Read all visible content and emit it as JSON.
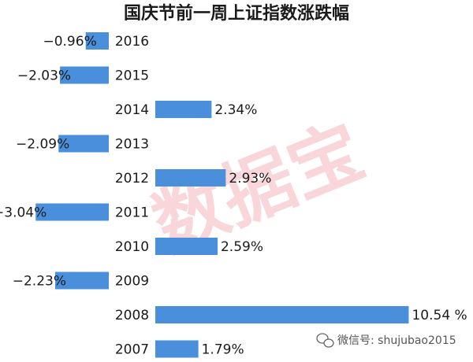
{
  "chart_data": {
    "type": "bar",
    "orientation": "horizontal",
    "title": "国庆节前一周上证指数涨跌幅",
    "categories": [
      "2016",
      "2015",
      "2014",
      "2013",
      "2012",
      "2011",
      "2010",
      "2009",
      "2008",
      "2007"
    ],
    "values": [
      -0.96,
      -2.03,
      2.34,
      -2.09,
      2.93,
      -3.04,
      2.59,
      -2.23,
      10.54,
      1.79
    ],
    "value_labels": [
      "−0.96%",
      "−2.03%",
      "2.34%",
      "−2.09%",
      "2.93%",
      "−3.04%",
      "2.59%",
      "−2.23%",
      "10.54 %",
      "1.79%"
    ],
    "color": "#4a8fdc",
    "watermark": "数据宝",
    "footer": "微信号: shujubao2015"
  }
}
